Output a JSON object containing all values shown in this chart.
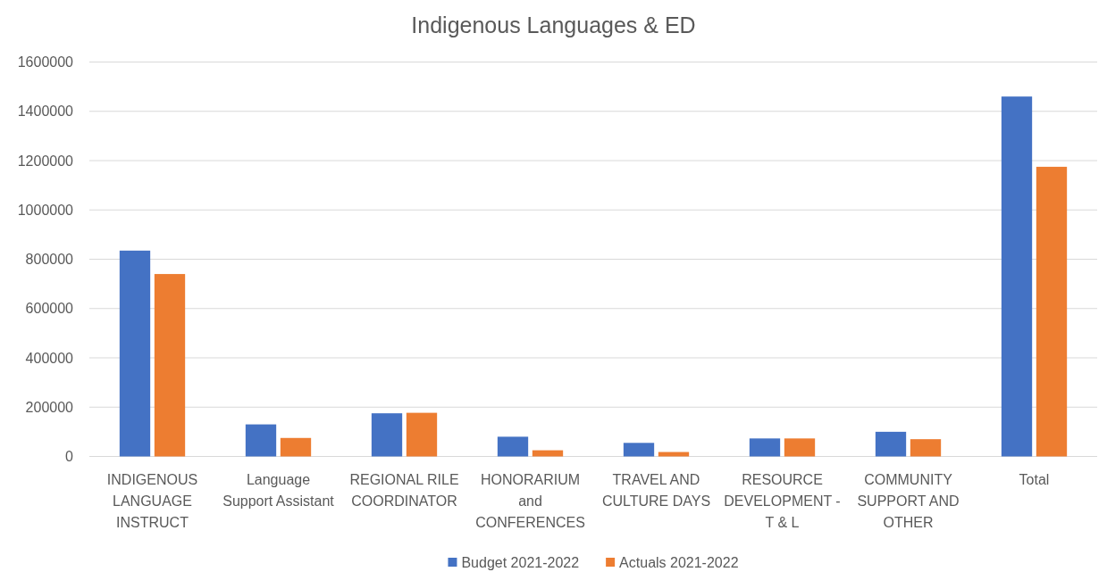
{
  "chart_data": {
    "type": "bar",
    "title": "Indigenous Languages & ED",
    "categories": [
      "INDIGENOUS LANGUAGE INSTRUCT",
      "Language Support Assistant",
      "REGIONAL RILE COORDINATOR",
      "HONORARIUM and CONFERENCES",
      "TRAVEL AND CULTURE DAYS",
      "RESOURCE DEVELOPMENT - T & L",
      "COMMUNITY SUPPORT AND OTHER",
      "Total"
    ],
    "series": [
      {
        "name": "Budget 2021-2022",
        "color": "#4472c4",
        "values": [
          835000,
          130000,
          175000,
          80000,
          55000,
          73000,
          100000,
          1460000
        ]
      },
      {
        "name": "Actuals 2021-2022",
        "color": "#ed7d31",
        "values": [
          740000,
          75000,
          177000,
          25000,
          18000,
          73000,
          70000,
          1175000
        ]
      }
    ],
    "ylim": [
      0,
      1600000
    ],
    "yticks": [
      0,
      200000,
      400000,
      600000,
      800000,
      1000000,
      1200000,
      1400000,
      1600000
    ],
    "grid": "y",
    "legend": "bottom"
  }
}
